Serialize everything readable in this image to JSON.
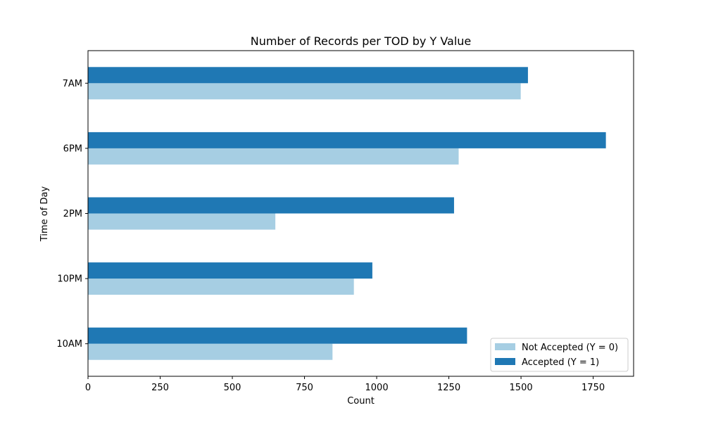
{
  "chart_data": {
    "type": "bar",
    "orientation": "horizontal",
    "title": "Number of Records per TOD by Y Value",
    "xlabel": "Count",
    "ylabel": "Time of Day",
    "categories": [
      "10AM",
      "10PM",
      "2PM",
      "6PM",
      "7AM"
    ],
    "series": [
      {
        "name": "Not Accepted (Y = 0)",
        "color": "#a6cee3",
        "values": [
          847,
          921,
          649,
          1284,
          1499
        ]
      },
      {
        "name": "Accepted (Y = 1)",
        "color": "#1f78b4",
        "values": [
          1313,
          985,
          1268,
          1794,
          1524
        ]
      }
    ],
    "xlim": [
      0,
      1890
    ],
    "xticks": [
      0,
      250,
      500,
      750,
      1000,
      1250,
      1500,
      1750
    ],
    "grid": false,
    "legend_position": "lower-right"
  }
}
